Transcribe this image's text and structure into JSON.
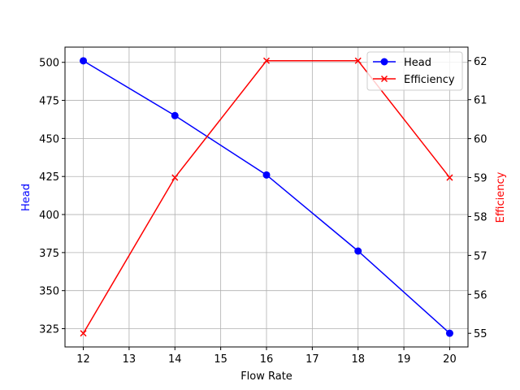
{
  "chart_data": {
    "type": "line",
    "title": "",
    "xlabel": "Flow Rate",
    "x": [
      12,
      14,
      16,
      18,
      20
    ],
    "xticks": [
      12,
      13,
      14,
      15,
      16,
      17,
      18,
      19,
      20
    ],
    "xlim": [
      11.6,
      20.4
    ],
    "grid": true,
    "legend_position": "upper right",
    "series": [
      {
        "name": "Head",
        "axis": "left",
        "color": "#0000ff",
        "marker": "o",
        "values": [
          501,
          465,
          426,
          376,
          322
        ]
      },
      {
        "name": "Efficiency",
        "axis": "right",
        "color": "#ff0000",
        "marker": "x",
        "values": [
          55,
          59,
          62,
          62,
          59
        ]
      }
    ],
    "left_axis": {
      "label": "Head",
      "color": "#0000ff",
      "ticks": [
        325,
        350,
        375,
        400,
        425,
        450,
        475,
        500
      ],
      "ylim": [
        313,
        510
      ]
    },
    "right_axis": {
      "label": "Efficiency",
      "color": "#ff0000",
      "ticks": [
        55,
        56,
        57,
        58,
        59,
        60,
        61,
        62
      ],
      "ylim": [
        54.65,
        62.35
      ]
    }
  }
}
